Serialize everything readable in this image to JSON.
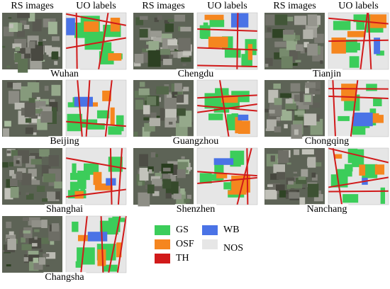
{
  "column_groups": [
    {
      "headers": [
        "RS images",
        "UO labels"
      ]
    },
    {
      "headers": [
        "RS images",
        "UO labels"
      ]
    },
    {
      "headers": [
        "RS images",
        "UO labels"
      ]
    }
  ],
  "cities": [
    "Wuhan",
    "Chengdu",
    "Tianjin",
    "Beijing",
    "Guangzhou",
    "Chongqing",
    "Shanghai",
    "Shenzhen",
    "Nanchang",
    "Changsha"
  ],
  "legend": [
    {
      "label": "GS",
      "color": "#3ccd5a"
    },
    {
      "label": "OSF",
      "color": "#f5861f"
    },
    {
      "label": "TH",
      "color": "#d11a1a"
    },
    {
      "label": "WB",
      "color": "#4a73e6"
    },
    {
      "label": "NOS",
      "color": "#e6e6e6"
    }
  ]
}
